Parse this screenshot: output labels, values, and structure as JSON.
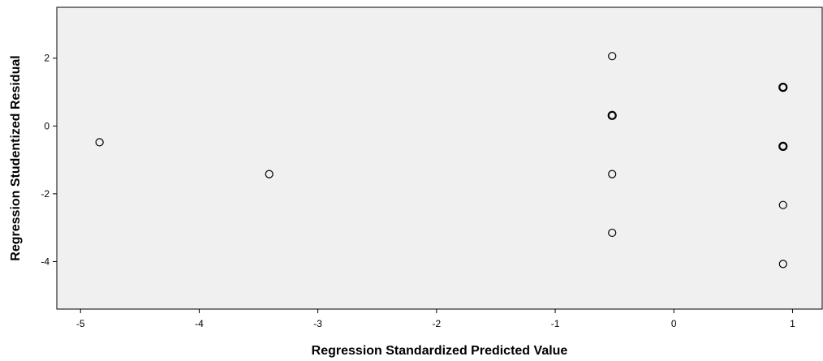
{
  "chart_data": {
    "type": "scatter",
    "xlabel": "Regression Standardized Predicted Value",
    "ylabel": "Regression Studentized Residual",
    "xlim": [
      -5.2,
      1.25
    ],
    "ylim": [
      -5.4,
      3.5
    ],
    "xticks": [
      -5,
      -4,
      -3,
      -2,
      -1,
      0,
      1
    ],
    "yticks": [
      2,
      0,
      -2,
      -4
    ],
    "grid": false,
    "colors": {
      "plot_background": "#f0f0f0",
      "marker_edge": "#000000",
      "marker_fill": "#f0f0f0"
    },
    "points": [
      {
        "x": -4.84,
        "y": -0.48,
        "repeats": 1
      },
      {
        "x": -3.41,
        "y": -1.42,
        "repeats": 1
      },
      {
        "x": -0.52,
        "y": 2.06,
        "repeats": 1
      },
      {
        "x": -0.52,
        "y": 0.31,
        "repeats": 2
      },
      {
        "x": -0.52,
        "y": -1.42,
        "repeats": 1
      },
      {
        "x": -0.52,
        "y": -3.15,
        "repeats": 1
      },
      {
        "x": 0.92,
        "y": 1.14,
        "repeats": 2
      },
      {
        "x": 0.92,
        "y": -0.6,
        "repeats": 2
      },
      {
        "x": 0.92,
        "y": -2.33,
        "repeats": 1
      },
      {
        "x": 0.92,
        "y": -4.07,
        "repeats": 1
      }
    ]
  }
}
